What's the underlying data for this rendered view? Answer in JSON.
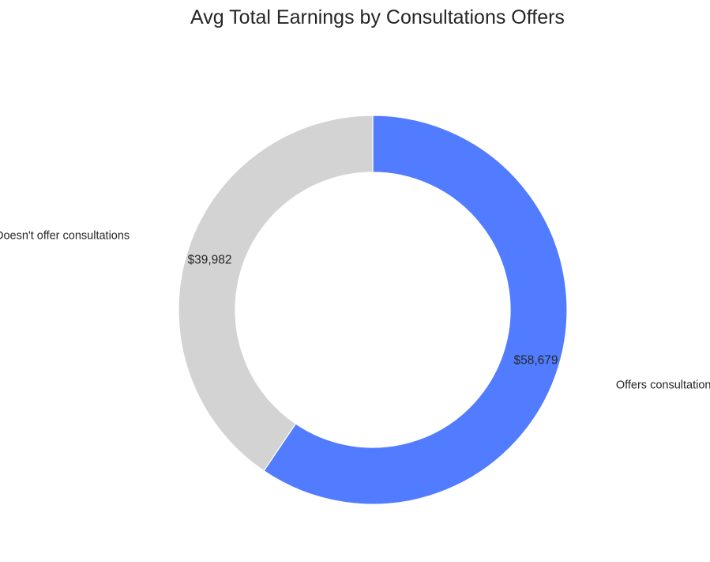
{
  "chart_data": {
    "type": "pie",
    "style": "donut",
    "title": "Avg Total Earnings by Consultations Offers",
    "categories": [
      "Offers consultations",
      "Doesn't offer consultations"
    ],
    "values": [
      58679,
      39982
    ],
    "value_labels": [
      "$58,679",
      "$39,982"
    ],
    "colors": [
      "#527cff",
      "#d3d3d3"
    ],
    "start_angle": "top",
    "direction": "clockwise",
    "legend": "none"
  }
}
